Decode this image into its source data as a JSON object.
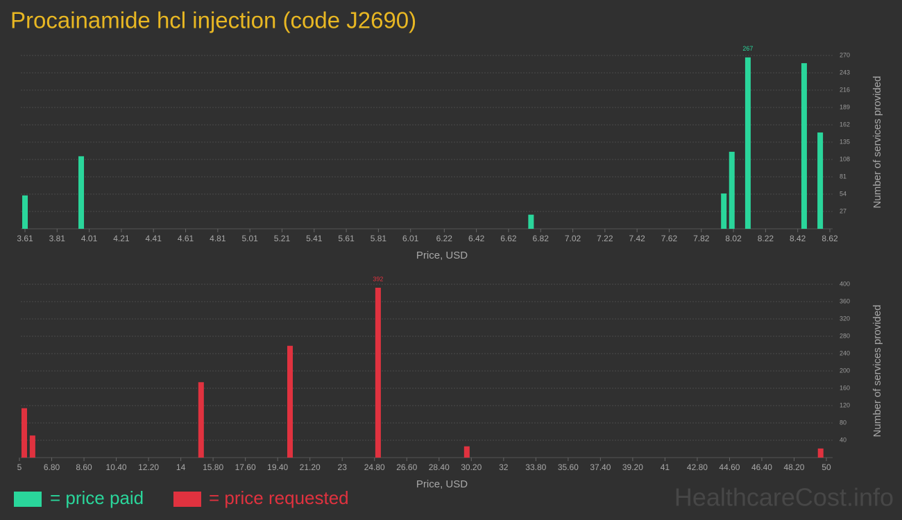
{
  "title": "Procainamide hcl injection (code J2690)",
  "watermark": "HealthcareCost.info",
  "chart_data": [
    {
      "type": "bar",
      "x_label": "Price, USD",
      "y_label": "Number of services provided",
      "x": [
        3.61,
        3.96,
        6.76,
        7.96,
        8.01,
        8.11,
        8.46,
        8.56
      ],
      "series": [
        {
          "name": "= price paid",
          "color": "#2ad69b",
          "values": [
            52,
            113,
            22,
            55,
            120,
            267,
            258,
            150
          ]
        }
      ],
      "xlim": [
        3.61,
        8.62
      ],
      "xticks": [
        3.61,
        3.81,
        4.01,
        4.21,
        4.41,
        4.61,
        4.81,
        5.01,
        5.21,
        5.41,
        5.61,
        5.81,
        6.01,
        6.22,
        6.42,
        6.62,
        6.82,
        7.02,
        7.22,
        7.42,
        7.62,
        7.82,
        8.02,
        8.22,
        8.42,
        8.62
      ],
      "ylim": [
        0,
        270
      ],
      "yticks": [
        27,
        54,
        81,
        108,
        135,
        162,
        189,
        216,
        243,
        270
      ],
      "grid": true
    },
    {
      "type": "bar",
      "x_label": "Price, USD",
      "y_label": "Number of services provided",
      "x": [
        5.27,
        5.73,
        15.13,
        20.09,
        25.0,
        29.95,
        49.68
      ],
      "series": [
        {
          "name": "= price requested",
          "color": "#e0323f",
          "values": [
            114,
            51,
            174,
            258,
            392,
            26,
            21
          ]
        }
      ],
      "xlim": [
        5,
        50
      ],
      "xticks": [
        5,
        {
          "value": 6.8,
          "label": "6.80"
        },
        {
          "value": 8.6,
          "label": "8.60"
        },
        {
          "value": 10.4,
          "label": "10.40"
        },
        {
          "value": 12.2,
          "label": "12.20"
        },
        14,
        {
          "value": 15.8,
          "label": "15.80"
        },
        {
          "value": 17.6,
          "label": "17.60"
        },
        {
          "value": 19.4,
          "label": "19.40"
        },
        {
          "value": 21.2,
          "label": "21.20"
        },
        23,
        {
          "value": 24.8,
          "label": "24.80"
        },
        {
          "value": 26.6,
          "label": "26.60"
        },
        {
          "value": 28.4,
          "label": "28.40"
        },
        {
          "value": 30.2,
          "label": "30.20"
        },
        32,
        {
          "value": 33.8,
          "label": "33.80"
        },
        {
          "value": 35.6,
          "label": "35.60"
        },
        {
          "value": 37.4,
          "label": "37.40"
        },
        {
          "value": 39.2,
          "label": "39.20"
        },
        41,
        {
          "value": 42.8,
          "label": "42.80"
        },
        {
          "value": 44.6,
          "label": "44.60"
        },
        {
          "value": 46.4,
          "label": "46.40"
        },
        {
          "value": 48.2,
          "label": "48.20"
        },
        50
      ],
      "ylim": [
        0,
        400
      ],
      "yticks": [
        40,
        80,
        120,
        160,
        200,
        240,
        280,
        320,
        360,
        400
      ],
      "grid": true
    }
  ]
}
